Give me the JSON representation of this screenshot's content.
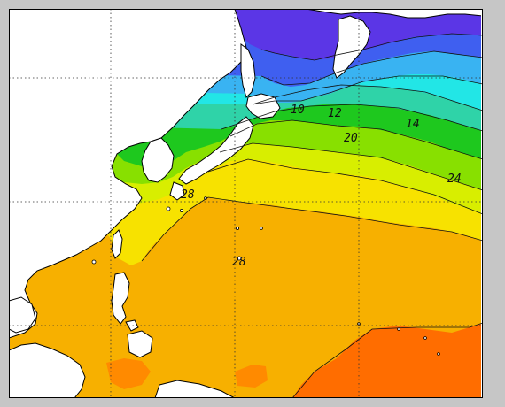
{
  "map": {
    "colors": {
      "land": "#ffffff",
      "frame": "#c6c6c6",
      "coast": "#000000",
      "grid": "#333333",
      "sst_2": "#5b36e6",
      "sst_6": "#3f5ff0",
      "sst_10": "#39b3f2",
      "sst_12": "#22e6e6",
      "sst_14": "#2fd3a8",
      "sst_16": "#1ec81e",
      "sst_18": "#88e000",
      "sst_20": "#d8ee00",
      "sst_22": "#f7e200",
      "sst_24": "#f7b000",
      "sst_26": "#ff8a00",
      "sst_28": "#ff6d00"
    },
    "contour_labels": [
      {
        "id": "label-10",
        "text": "10"
      },
      {
        "id": "label-12",
        "text": "12"
      },
      {
        "id": "label-14",
        "text": "14"
      },
      {
        "id": "label-20",
        "text": "20"
      },
      {
        "id": "label-24",
        "text": "24"
      },
      {
        "id": "label-28a",
        "text": "28"
      },
      {
        "id": "label-28b",
        "text": "28"
      }
    ]
  }
}
